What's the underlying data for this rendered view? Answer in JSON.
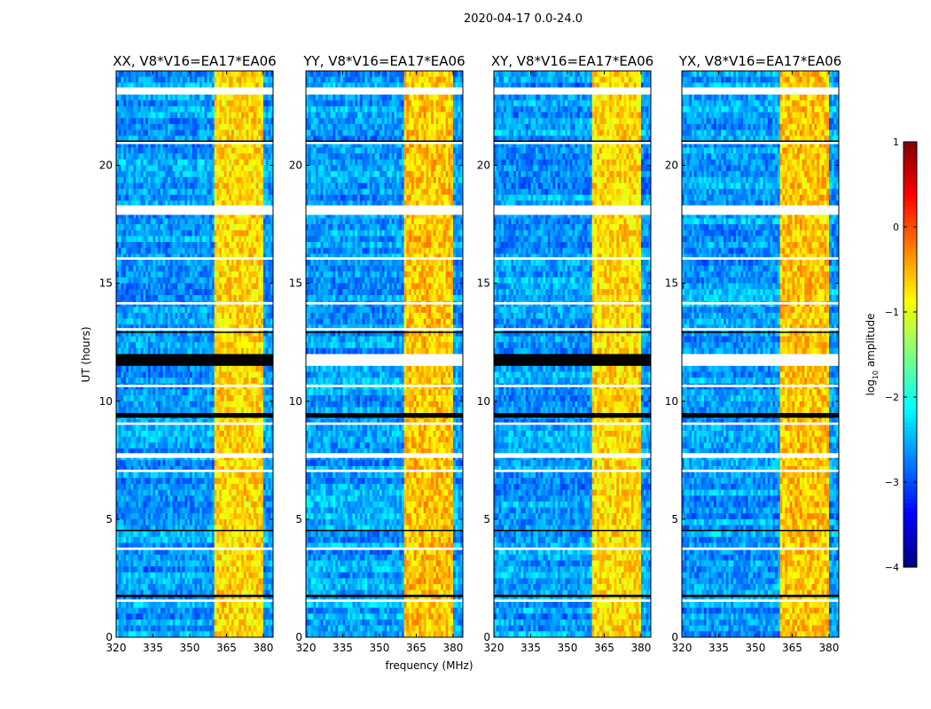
{
  "chart_data": {
    "type": "heatmap",
    "suptitle": "2020-04-17 0.0-24.0",
    "xlabel": "frequency (MHz)",
    "ylabel": "UT (hours)",
    "xlim": [
      320,
      384
    ],
    "ylim": [
      0,
      24
    ],
    "xticks": [
      320,
      335,
      350,
      365,
      380
    ],
    "yticks": [
      0,
      5,
      10,
      15,
      20
    ],
    "panels": [
      {
        "title": "XX, V8*V16=EA17*EA06"
      },
      {
        "title": "YY, V8*V16=EA17*EA06"
      },
      {
        "title": "XY, V8*V16=EA17*EA06"
      },
      {
        "title": "YX, V8*V16=EA17*EA06"
      }
    ],
    "colorbar": {
      "label_main": "log",
      "label_sub": "10",
      "label_rest": " amplitude",
      "range": [
        -4,
        1
      ],
      "ticks": [
        "1",
        "0",
        "−1",
        "−2",
        "−3",
        "−4"
      ],
      "tick_values": [
        1,
        0,
        -1,
        -2,
        -3,
        -4
      ],
      "colormap": "jet"
    },
    "background_level": -2.6,
    "rfi_band_mhz": [
      360.5,
      380
    ],
    "rfi_level": -0.7,
    "rfi_gap_channels_mhz": [
      366,
      371,
      376,
      380.2
    ],
    "flagged_white_hours": [
      [
        23.0,
        23.3
      ],
      [
        20.9,
        21.0
      ],
      [
        17.9,
        18.3
      ],
      [
        16.0,
        16.1
      ],
      [
        14.1,
        14.2
      ],
      [
        13.0,
        13.1
      ],
      [
        10.6,
        10.7
      ],
      [
        9.0,
        9.1
      ],
      [
        7.6,
        7.8
      ],
      [
        7.0,
        7.1
      ],
      [
        3.7,
        3.8
      ],
      [
        1.5,
        1.6
      ]
    ],
    "flagged_black_hours": [
      [
        11.5,
        12.0
      ],
      [
        9.3,
        9.5
      ],
      [
        1.7,
        1.8
      ],
      [
        4.5,
        4.55
      ],
      [
        21.0,
        21.05
      ],
      [
        12.9,
        12.95
      ]
    ]
  }
}
